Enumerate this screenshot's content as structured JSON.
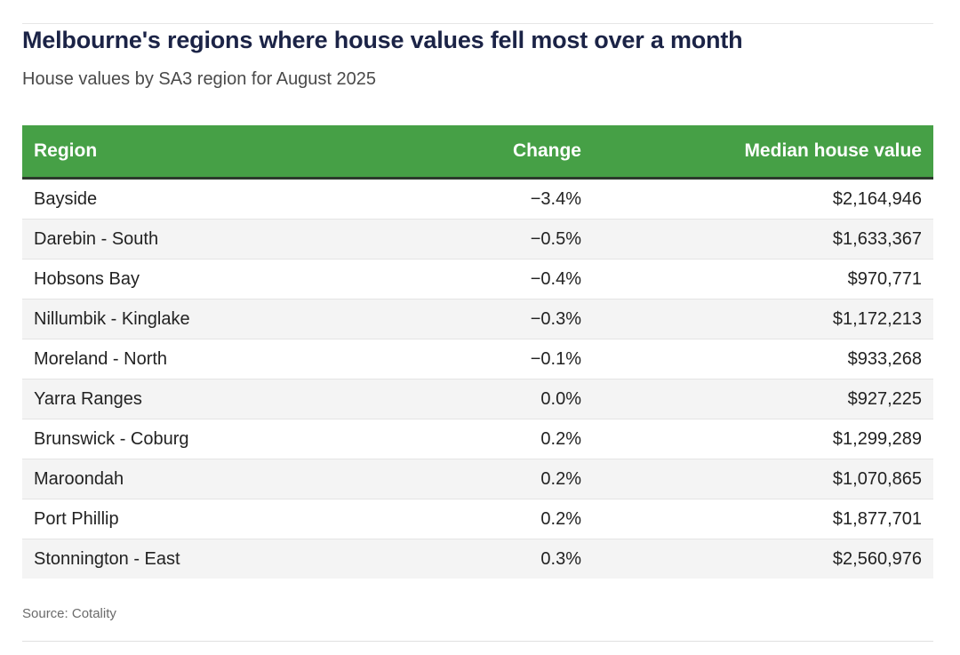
{
  "header": {
    "title": "Melbourne's regions where house values fell most over a month",
    "subtitle": "House values by SA3 region for August 2025"
  },
  "colors": {
    "header_bg": "#46a046",
    "title": "#1b2346",
    "stripe": "#f4f4f4"
  },
  "chart_data": {
    "type": "table",
    "columns": [
      "Region",
      "Change",
      "Median house value"
    ],
    "rows": [
      [
        "Bayside",
        "−3.4%",
        "$2,164,946"
      ],
      [
        "Darebin - South",
        "−0.5%",
        "$1,633,367"
      ],
      [
        "Hobsons Bay",
        "−0.4%",
        "$970,771"
      ],
      [
        "Nillumbik - Kinglake",
        "−0.3%",
        "$1,172,213"
      ],
      [
        "Moreland - North",
        "−0.1%",
        "$933,268"
      ],
      [
        "Yarra Ranges",
        "0.0%",
        "$927,225"
      ],
      [
        "Brunswick - Coburg",
        "0.2%",
        "$1,299,289"
      ],
      [
        "Maroondah",
        "0.2%",
        "$1,070,865"
      ],
      [
        "Port Phillip",
        "0.2%",
        "$1,877,701"
      ],
      [
        "Stonnington - East",
        "0.3%",
        "$2,560,976"
      ]
    ]
  },
  "footer": {
    "source": "Source: Cotality"
  }
}
